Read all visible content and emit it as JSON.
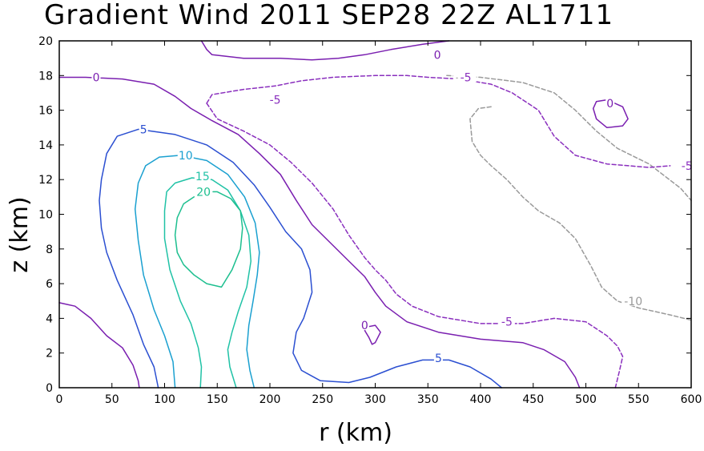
{
  "chart_data": {
    "type": "contour",
    "title": "Gradient Wind 2011 SEP28 22Z  AL1711",
    "xlabel": "r (km)",
    "ylabel": "z (km)",
    "xlim": [
      0,
      600
    ],
    "ylim": [
      0,
      20
    ],
    "x_ticks": [
      "0",
      "50",
      "100",
      "150",
      "200",
      "250",
      "300",
      "350",
      "400",
      "450",
      "500",
      "550",
      "600"
    ],
    "y_ticks": [
      "0",
      "2",
      "4",
      "6",
      "8",
      "10",
      "12",
      "14",
      "16",
      "18",
      "20"
    ],
    "contours": [
      {
        "level": -10,
        "label": "-10",
        "color": "#9a9a9a",
        "style": "dashed",
        "labels": [
          {
            "r": 385,
            "z": 17.9
          },
          {
            "r": 545,
            "z": 5.0
          }
        ],
        "segments": [
          [
            [
              368,
              18.0
            ],
            [
              400,
              17.9
            ],
            [
              440,
              17.6
            ],
            [
              470,
              17.0
            ],
            [
              490,
              16.0
            ],
            [
              510,
              14.8
            ],
            [
              530,
              13.8
            ],
            [
              560,
              12.9
            ],
            [
              590,
              11.5
            ],
            [
              600,
              10.8
            ]
          ],
          [
            [
              410,
              16.2
            ],
            [
              398,
              16.1
            ],
            [
              390,
              15.5
            ],
            [
              392,
              14.2
            ],
            [
              400,
              13.4
            ],
            [
              410,
              12.8
            ],
            [
              425,
              12.0
            ],
            [
              440,
              11.0
            ],
            [
              455,
              10.2
            ],
            [
              475,
              9.5
            ],
            [
              490,
              8.6
            ],
            [
              505,
              7.0
            ],
            [
              515,
              5.8
            ],
            [
              530,
              5.0
            ],
            [
              550,
              4.6
            ],
            [
              580,
              4.2
            ],
            [
              600,
              3.9
            ]
          ]
        ]
      },
      {
        "level": -5,
        "label": "-5",
        "color": "#8a2fbe",
        "style": "dashed",
        "labels": [
          {
            "r": 205,
            "z": 16.6
          },
          {
            "r": 386,
            "z": 17.9
          },
          {
            "r": 596,
            "z": 12.8
          },
          {
            "r": 425,
            "z": 3.8
          }
        ],
        "segments": [
          [
            [
              140,
              16.4
            ],
            [
              145,
              16.9
            ],
            [
              175,
              17.2
            ],
            [
              205,
              17.4
            ],
            [
              230,
              17.7
            ],
            [
              260,
              17.9
            ],
            [
              300,
              18.0
            ],
            [
              330,
              18.0
            ],
            [
              350,
              17.9
            ],
            [
              380,
              17.8
            ],
            [
              410,
              17.5
            ],
            [
              430,
              17.0
            ],
            [
              455,
              16.0
            ],
            [
              470,
              14.5
            ],
            [
              490,
              13.4
            ],
            [
              520,
              12.9
            ],
            [
              560,
              12.7
            ],
            [
              580,
              12.8
            ]
          ],
          [
            [
              140,
              16.4
            ],
            [
              150,
              15.5
            ],
            [
              175,
              14.8
            ],
            [
              200,
              14.0
            ],
            [
              220,
              13.0
            ],
            [
              240,
              11.8
            ],
            [
              260,
              10.3
            ],
            [
              275,
              8.8
            ],
            [
              290,
              7.5
            ],
            [
              300,
              6.8
            ],
            [
              310,
              6.2
            ],
            [
              320,
              5.4
            ],
            [
              335,
              4.7
            ],
            [
              360,
              4.1
            ],
            [
              400,
              3.7
            ],
            [
              440,
              3.7
            ],
            [
              470,
              4.0
            ],
            [
              500,
              3.8
            ],
            [
              520,
              3.0
            ],
            [
              530,
              2.4
            ],
            [
              535,
              1.8
            ],
            [
              532,
              1.0
            ],
            [
              528,
              0.0
            ]
          ]
        ]
      },
      {
        "level": 0,
        "label": "0",
        "color": "#7a1fb0",
        "style": "solid",
        "labels": [
          {
            "r": 35,
            "z": 17.9
          },
          {
            "r": 359,
            "z": 19.2
          },
          {
            "r": 523,
            "z": 16.4
          },
          {
            "r": 290,
            "z": 3.6
          }
        ],
        "segments": [
          [
            [
              0,
              17.9
            ],
            [
              25,
              17.9
            ],
            [
              60,
              17.8
            ],
            [
              90,
              17.5
            ],
            [
              110,
              16.8
            ],
            [
              125,
              16.1
            ],
            [
              145,
              15.4
            ],
            [
              170,
              14.6
            ],
            [
              190,
              13.5
            ],
            [
              210,
              12.3
            ],
            [
              225,
              10.8
            ],
            [
              240,
              9.4
            ],
            [
              260,
              8.2
            ],
            [
              275,
              7.3
            ],
            [
              290,
              6.4
            ],
            [
              300,
              5.5
            ],
            [
              310,
              4.7
            ],
            [
              330,
              3.8
            ],
            [
              360,
              3.2
            ],
            [
              400,
              2.8
            ],
            [
              440,
              2.6
            ],
            [
              460,
              2.2
            ],
            [
              480,
              1.5
            ],
            [
              490,
              0.6
            ],
            [
              494,
              0.0
            ]
          ],
          [
            [
              0,
              4.9
            ],
            [
              15,
              4.7
            ],
            [
              30,
              4.0
            ],
            [
              45,
              3.0
            ],
            [
              60,
              2.3
            ],
            [
              70,
              1.3
            ],
            [
              75,
              0.4
            ],
            [
              76,
              0.0
            ]
          ],
          [
            [
              135,
              20.0
            ],
            [
              140,
              19.5
            ],
            [
              145,
              19.2
            ],
            [
              175,
              19.0
            ],
            [
              210,
              19.0
            ],
            [
              240,
              18.9
            ],
            [
              265,
              19.0
            ],
            [
              290,
              19.2
            ],
            [
              315,
              19.5
            ],
            [
              345,
              19.8
            ],
            [
              370,
              20.0
            ]
          ],
          [
            [
              507,
              16.1
            ],
            [
              510,
              15.5
            ],
            [
              520,
              15.0
            ],
            [
              535,
              15.1
            ],
            [
              540,
              15.5
            ],
            [
              535,
              16.2
            ],
            [
              520,
              16.6
            ],
            [
              510,
              16.5
            ],
            [
              507,
              16.1
            ]
          ],
          [
            [
              290,
              3.3
            ],
            [
              294,
              2.9
            ],
            [
              297,
              2.5
            ],
            [
              300,
              2.6
            ],
            [
              305,
              3.2
            ],
            [
              300,
              3.6
            ],
            [
              292,
              3.5
            ],
            [
              290,
              3.3
            ]
          ]
        ]
      },
      {
        "level": 5,
        "label": "5",
        "color": "#2b4fd1",
        "style": "solid",
        "labels": [
          {
            "r": 80,
            "z": 14.9
          },
          {
            "r": 360,
            "z": 1.7
          }
        ],
        "segments": [
          [
            [
              94,
              0.0
            ],
            [
              90,
              1.2
            ],
            [
              80,
              2.5
            ],
            [
              70,
              4.2
            ],
            [
              55,
              6.2
            ],
            [
              45,
              7.8
            ],
            [
              40,
              9.2
            ],
            [
              38,
              10.8
            ],
            [
              40,
              12.0
            ],
            [
              45,
              13.5
            ],
            [
              55,
              14.5
            ],
            [
              75,
              14.9
            ],
            [
              110,
              14.6
            ],
            [
              140,
              14.0
            ],
            [
              165,
              13.0
            ],
            [
              185,
              11.7
            ],
            [
              200,
              10.4
            ],
            [
              215,
              9.0
            ],
            [
              230,
              8.0
            ],
            [
              238,
              6.8
            ],
            [
              240,
              5.5
            ],
            [
              232,
              4.0
            ],
            [
              225,
              3.2
            ],
            [
              222,
              2.0
            ],
            [
              230,
              1.0
            ],
            [
              248,
              0.4
            ],
            [
              275,
              0.3
            ],
            [
              295,
              0.6
            ],
            [
              320,
              1.2
            ],
            [
              345,
              1.6
            ],
            [
              370,
              1.6
            ],
            [
              390,
              1.2
            ],
            [
              410,
              0.5
            ],
            [
              420,
              0.0
            ]
          ]
        ]
      },
      {
        "level": 10,
        "label": "10",
        "color": "#1aa0d0",
        "style": "solid",
        "labels": [
          {
            "r": 120,
            "z": 13.4
          }
        ],
        "segments": [
          [
            [
              110,
              0.0
            ],
            [
              108,
              1.5
            ],
            [
              100,
              3.0
            ],
            [
              90,
              4.5
            ],
            [
              80,
              6.5
            ],
            [
              75,
              8.5
            ],
            [
              72,
              10.3
            ],
            [
              75,
              11.8
            ],
            [
              82,
              12.8
            ],
            [
              95,
              13.3
            ],
            [
              115,
              13.4
            ],
            [
              140,
              13.1
            ],
            [
              160,
              12.3
            ],
            [
              176,
              11.0
            ],
            [
              186,
              9.5
            ],
            [
              190,
              7.8
            ],
            [
              188,
              6.5
            ],
            [
              184,
              5.0
            ],
            [
              180,
              3.6
            ],
            [
              178,
              2.2
            ],
            [
              181,
              1.0
            ],
            [
              185,
              0.0
            ]
          ]
        ]
      },
      {
        "level": 15,
        "label": "15",
        "color": "#20c2a6",
        "style": "solid",
        "labels": [
          {
            "r": 136,
            "z": 12.2
          }
        ],
        "segments": [
          [
            [
              134,
              0.0
            ],
            [
              135,
              1.2
            ],
            [
              132,
              2.3
            ],
            [
              125,
              3.7
            ],
            [
              115,
              5.0
            ],
            [
              105,
              6.8
            ],
            [
              100,
              8.6
            ],
            [
              100,
              10.2
            ],
            [
              102,
              11.3
            ],
            [
              110,
              11.8
            ],
            [
              126,
              12.1
            ],
            [
              145,
              12.0
            ],
            [
              160,
              11.4
            ],
            [
              172,
              10.2
            ],
            [
              180,
              8.8
            ],
            [
              182,
              7.3
            ],
            [
              178,
              5.8
            ],
            [
              170,
              4.4
            ],
            [
              164,
              3.2
            ],
            [
              160,
              2.2
            ],
            [
              162,
              1.2
            ],
            [
              168,
              0.0
            ]
          ]
        ]
      },
      {
        "level": 20,
        "label": "20",
        "color": "#1dbf8f",
        "style": "solid",
        "labels": [
          {
            "r": 137,
            "z": 11.3
          }
        ],
        "segments": [
          [
            [
              128,
              11.0
            ],
            [
              118,
              10.6
            ],
            [
              112,
              9.8
            ],
            [
              110,
              8.8
            ],
            [
              112,
              7.8
            ],
            [
              118,
              7.1
            ],
            [
              128,
              6.5
            ],
            [
              140,
              6.0
            ],
            [
              154,
              5.8
            ],
            [
              164,
              6.8
            ],
            [
              172,
              8.0
            ],
            [
              174,
              9.2
            ],
            [
              172,
              10.2
            ],
            [
              163,
              10.9
            ],
            [
              150,
              11.3
            ],
            [
              146,
              11.3
            ]
          ]
        ]
      }
    ]
  }
}
